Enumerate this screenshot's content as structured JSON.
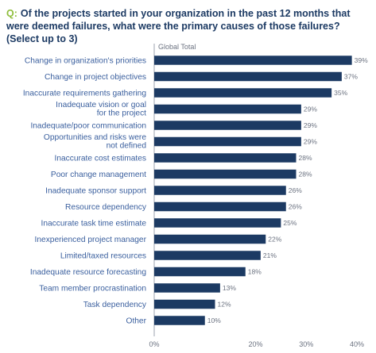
{
  "title": {
    "prefix": "Q:",
    "text": "Of the projects started in your organization in the past 12 months that were deemed failures, what were the primary causes of those failures? (Select up to 3)"
  },
  "colors": {
    "bar": "#1c3a63",
    "question_prefix": "#8fbe3c",
    "labels": "#3a5f9e",
    "axis": "#9ca3af"
  },
  "chart_data": {
    "type": "bar",
    "orientation": "horizontal",
    "title": "Of the projects started in your organization in the past 12 months that were deemed failures, what were the primary causes of those failures? (Select up to 3)",
    "series": [
      {
        "name": "Global Total",
        "values": [
          39,
          37,
          35,
          29,
          29,
          29,
          28,
          28,
          26,
          26,
          25,
          22,
          21,
          18,
          13,
          12,
          10
        ]
      }
    ],
    "categories": [
      "Change in organization's priorities",
      "Change in project objectives",
      "Inaccurate requirements gathering",
      "Inadequate vision or goal for the project",
      "Inadequate/poor communication",
      "Opportunities and risks were not defined",
      "Inaccurate cost estimates",
      "Poor change management",
      "Inadequate sponsor support",
      "Resource dependency",
      "Inaccurate task time estimate",
      "Inexperienced project manager",
      "Limited/taxed resources",
      "Inadequate resource forecasting",
      "Team member procrastination",
      "Task dependency",
      "Other"
    ],
    "category_lines": [
      [
        "Change in organization's priorities"
      ],
      [
        "Change in project objectives"
      ],
      [
        "Inaccurate requirements gathering"
      ],
      [
        "Inadequate vision or goal",
        "for the project"
      ],
      [
        "Inadequate/poor communication"
      ],
      [
        "Opportunities and risks were",
        "not defined"
      ],
      [
        "Inaccurate cost estimates"
      ],
      [
        "Poor change management"
      ],
      [
        "Inadequate sponsor support"
      ],
      [
        "Resource dependency"
      ],
      [
        "Inaccurate task time estimate"
      ],
      [
        "Inexperienced project manager"
      ],
      [
        "Limited/taxed resources"
      ],
      [
        "Inadequate resource forecasting"
      ],
      [
        "Team member procrastination"
      ],
      [
        "Task dependency"
      ],
      [
        "Other"
      ]
    ],
    "value_suffix": "%",
    "xlim": [
      0,
      40
    ],
    "xticks": [
      0,
      10,
      20,
      30,
      40
    ],
    "xtick_labels": [
      "0%",
      "20%",
      "30%",
      "40%"
    ],
    "xtick_label_values": [
      0,
      20,
      30,
      40
    ],
    "grid": false,
    "legend": "none"
  }
}
